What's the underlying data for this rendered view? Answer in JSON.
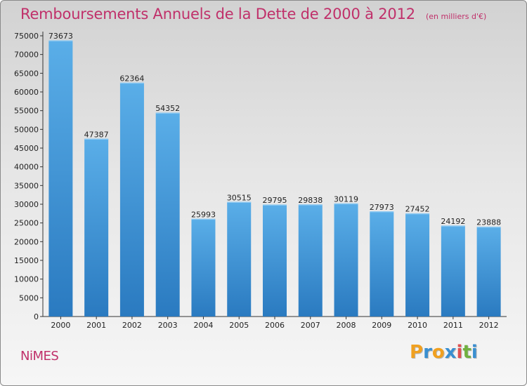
{
  "header": {
    "title": "Remboursements Annuels de la Dette de 2000 à 2012",
    "subtitle": "(en milliers d'€)"
  },
  "footer": {
    "city": "NiMES",
    "brand_letters": [
      "P",
      "r",
      "o",
      "x",
      "i",
      "t",
      "i"
    ]
  },
  "colors": {
    "title": "#c0306a",
    "bar_top": "#5aaee8",
    "bar_bottom": "#2a7ac0",
    "brand": [
      "#f0a020",
      "#3a8fd0",
      "#f0a020",
      "#3a8fd0",
      "#e05050",
      "#70b040",
      "#3a8fd0"
    ]
  },
  "chart_data": {
    "type": "bar",
    "title": "Remboursements Annuels de la Dette de 2000 à 2012",
    "subtitle": "(en milliers d'€)",
    "xlabel": "",
    "ylabel": "",
    "categories": [
      "2000",
      "2001",
      "2002",
      "2003",
      "2004",
      "2005",
      "2006",
      "2007",
      "2008",
      "2009",
      "2010",
      "2011",
      "2012"
    ],
    "values": [
      73673,
      47387,
      62364,
      54352,
      25993,
      30515,
      29795,
      29838,
      30119,
      27973,
      27452,
      24192,
      23888
    ],
    "ylim": [
      0,
      75000
    ],
    "yticks": [
      0,
      5000,
      10000,
      15000,
      20000,
      25000,
      30000,
      35000,
      40000,
      45000,
      50000,
      55000,
      60000,
      65000,
      70000,
      75000
    ],
    "grid": false,
    "legend": "none"
  }
}
